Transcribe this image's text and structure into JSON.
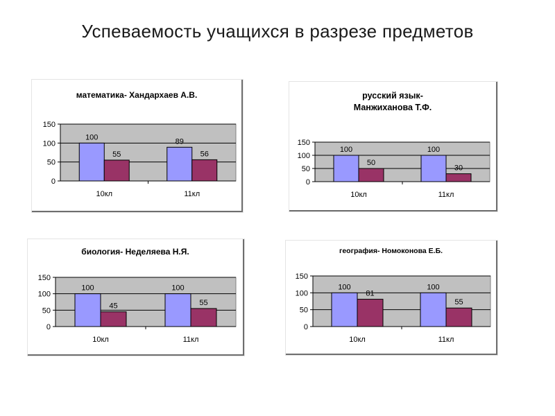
{
  "page": {
    "title": "Успеваемость учащихся в разрезе  предметов"
  },
  "colors": {
    "series_1": "#9999ff",
    "series_2": "#993366",
    "plot_bg": "#c0c0c0"
  },
  "chart_data": [
    {
      "type": "bar",
      "title": "математика- Хандархаев А.В.",
      "categories": [
        "10кл",
        "11кл"
      ],
      "series": [
        {
          "values": [
            100,
            89
          ]
        },
        {
          "values": [
            55,
            56
          ]
        }
      ],
      "yticks": [
        "0",
        "50",
        "100",
        "150"
      ],
      "ylim": [
        0,
        150
      ],
      "grid": true,
      "legend": "none"
    },
    {
      "type": "bar",
      "title": "русский язык-\nМанжиханова Т.Ф.",
      "categories": [
        "10кл",
        "11кл"
      ],
      "series": [
        {
          "values": [
            100,
            100
          ]
        },
        {
          "values": [
            50,
            30
          ]
        }
      ],
      "yticks": [
        "0",
        "50",
        "100",
        "150"
      ],
      "ylim": [
        0,
        150
      ],
      "grid": true,
      "legend": "none"
    },
    {
      "type": "bar",
      "title": "биология- Неделяева Н.Я.",
      "categories": [
        "10кл",
        "11кл"
      ],
      "series": [
        {
          "values": [
            100,
            100
          ]
        },
        {
          "values": [
            45,
            55
          ]
        }
      ],
      "yticks": [
        "0",
        "50",
        "100",
        "150"
      ],
      "ylim": [
        0,
        150
      ],
      "grid": true,
      "legend": "none"
    },
    {
      "type": "bar",
      "title": "география- Номоконова Е.Б.",
      "categories": [
        "10кл",
        "11кл"
      ],
      "series": [
        {
          "values": [
            100,
            100
          ]
        },
        {
          "values": [
            81,
            55
          ]
        }
      ],
      "yticks": [
        "0",
        "50",
        "100",
        "150"
      ],
      "ylim": [
        0,
        150
      ],
      "grid": true,
      "legend": "none"
    }
  ]
}
